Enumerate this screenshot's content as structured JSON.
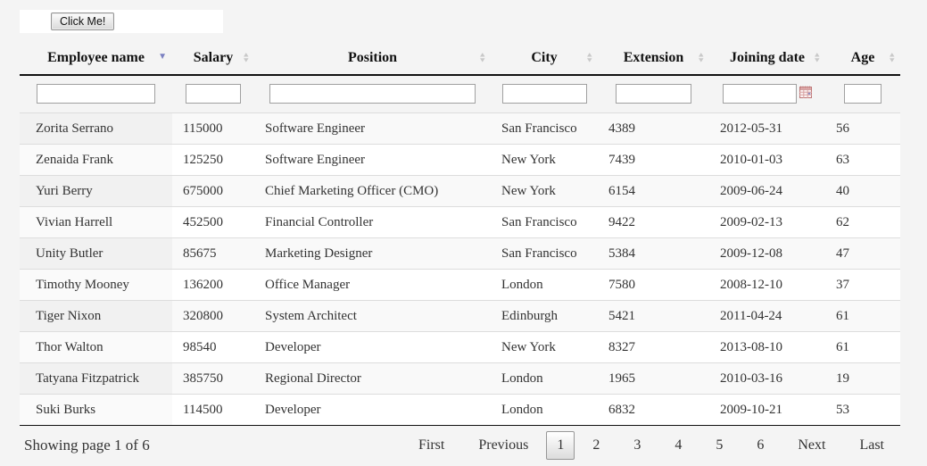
{
  "toolbar": {
    "click_me_label": "Click Me!"
  },
  "table": {
    "columns": [
      {
        "label": "Employee name",
        "sort": "desc"
      },
      {
        "label": "Salary",
        "sort": "both"
      },
      {
        "label": "Position",
        "sort": "both"
      },
      {
        "label": "City",
        "sort": "both"
      },
      {
        "label": "Extension",
        "sort": "both"
      },
      {
        "label": "Joining date",
        "sort": "both",
        "filter_icon": "calendar-icon"
      },
      {
        "label": "Age",
        "sort": "both"
      }
    ],
    "filter_values": [
      "",
      "",
      "",
      "",
      "",
      "",
      ""
    ],
    "rows": [
      [
        "Zorita Serrano",
        "115000",
        "Software Engineer",
        "San Francisco",
        "4389",
        "2012-05-31",
        "56"
      ],
      [
        "Zenaida Frank",
        "125250",
        "Software Engineer",
        "New York",
        "7439",
        "2010-01-03",
        "63"
      ],
      [
        "Yuri Berry",
        "675000",
        "Chief Marketing Officer (CMO)",
        "New York",
        "6154",
        "2009-06-24",
        "40"
      ],
      [
        "Vivian Harrell",
        "452500",
        "Financial Controller",
        "San Francisco",
        "9422",
        "2009-02-13",
        "62"
      ],
      [
        "Unity Butler",
        "85675",
        "Marketing Designer",
        "San Francisco",
        "5384",
        "2009-12-08",
        "47"
      ],
      [
        "Timothy Mooney",
        "136200",
        "Office Manager",
        "London",
        "7580",
        "2008-12-10",
        "37"
      ],
      [
        "Tiger Nixon",
        "320800",
        "System Architect",
        "Edinburgh",
        "5421",
        "2011-04-24",
        "61"
      ],
      [
        "Thor Walton",
        "98540",
        "Developer",
        "New York",
        "8327",
        "2013-08-10",
        "61"
      ],
      [
        "Tatyana Fitzpatrick",
        "385750",
        "Regional Director",
        "London",
        "1965",
        "2010-03-16",
        "19"
      ],
      [
        "Suki Burks",
        "114500",
        "Developer",
        "London",
        "6832",
        "2009-10-21",
        "53"
      ]
    ]
  },
  "footer": {
    "status": "Showing page 1 of 6",
    "pagination": {
      "first": "First",
      "previous": "Previous",
      "pages": [
        "1",
        "2",
        "3",
        "4",
        "5",
        "6"
      ],
      "current_page": "1",
      "next": "Next",
      "last": "Last"
    }
  },
  "colors": {
    "page_background": "#f4f4f4",
    "stripe_odd": "#f9f9f9",
    "sorted_column_odd": "#f1f1f1",
    "sorted_column_even": "#fafafa",
    "sort_active_arrow": "#7b80c1",
    "sort_inactive_arrow": "#c9c9c9",
    "header_rule": "#111111",
    "text": "#333333"
  }
}
